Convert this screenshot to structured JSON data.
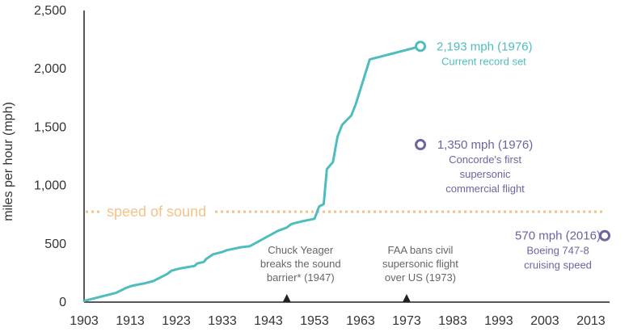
{
  "chart_data": {
    "type": "line",
    "title": "",
    "xlabel": "",
    "ylabel": "miles per hour (mph)",
    "xlim": [
      1903,
      2016
    ],
    "ylim": [
      0,
      2500
    ],
    "x_ticks": [
      "1903",
      "1913",
      "1923",
      "1933",
      "1943",
      "1953",
      "1963",
      "1973",
      "1983",
      "1993",
      "2003",
      "2013"
    ],
    "y_ticks": [
      "0",
      "500",
      "1,000",
      "1,500",
      "2,000",
      "2,500"
    ],
    "grid": false,
    "colors": {
      "record": "#4fbdbd",
      "highlight": "#6e64a0",
      "sound": "#f2c48b",
      "event": "#888888",
      "axis": "#222222"
    },
    "series": [
      {
        "x": [
          1903,
          1904,
          1906,
          1908,
          1910,
          1912,
          1913,
          1914,
          1916,
          1918,
          1920,
          1921,
          1922,
          1923,
          1924,
          1927,
          1927.5,
          1929,
          1929.5,
          1931,
          1933,
          1934,
          1937,
          1939,
          1945,
          1946,
          1947,
          1948,
          1949,
          1950,
          1953,
          1954,
          1955,
          1955.7,
          1957,
          1958,
          1959,
          1961,
          1962,
          1965,
          1976
        ],
        "y": [
          10,
          20,
          40,
          60,
          80,
          120,
          135,
          145,
          160,
          180,
          220,
          240,
          270,
          280,
          290,
          310,
          330,
          345,
          370,
          410,
          430,
          445,
          470,
          480,
          610,
          625,
          640,
          670,
          680,
          690,
          715,
          820,
          840,
          1140,
          1200,
          1420,
          1520,
          1600,
          1700,
          2080,
          2193
        ]
      }
    ],
    "speed_of_sound": {
      "value": 775,
      "label": "speed of sound"
    },
    "highlights": [
      {
        "x": 1976,
        "y": 2193,
        "title": "2,193 mph (1976)",
        "sub": [
          "Current record set"
        ],
        "color_key": "record",
        "align": "left"
      },
      {
        "x": 1976,
        "y": 1350,
        "title": "1,350 mph (1976)",
        "sub": [
          "Concorde's first",
          "supersonic",
          "commercial flight"
        ],
        "color_key": "highlight",
        "align": "center"
      },
      {
        "x": 2016,
        "y": 570,
        "title": "570 mph (2016)",
        "sub": [
          "Boeing 747-8",
          "cruising speed"
        ],
        "color_key": "highlight",
        "align": "right"
      }
    ],
    "events": [
      {
        "x": 1947,
        "lines": [
          "Chuck Yeager",
          "breaks the sound",
          "barrier* (1947)"
        ]
      },
      {
        "x": 1973,
        "lines": [
          "FAA bans civil",
          "supersonic flight",
          "over US (1973)"
        ]
      }
    ]
  }
}
